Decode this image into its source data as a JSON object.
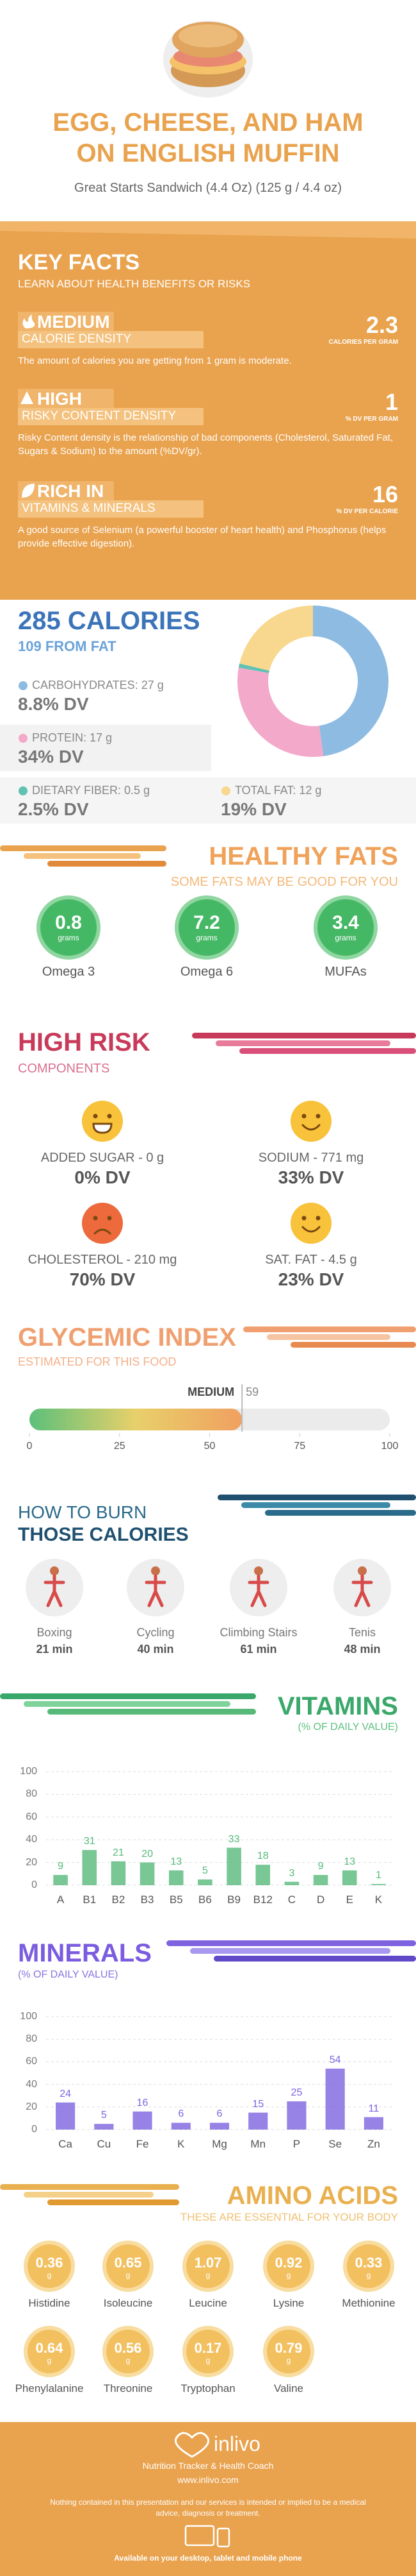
{
  "header": {
    "title_line1": "EGG, CHEESE, AND HAM",
    "title_line2": "ON ENGLISH MUFFIN",
    "subtitle": "Great Starts Sandwich (4.4 Oz) (125 g / 4.4 oz)"
  },
  "key_facts": {
    "title": "KEY FACTS",
    "subtitle": "LEARN ABOUT HEALTH BENEFITS OR RISKS",
    "items": [
      {
        "level": "MEDIUM",
        "name": "CALORIE DENSITY",
        "value": 2.3,
        "unit": "CALORIES PER GRAM",
        "text": "The amount of calories you are getting from 1 gram is moderate."
      },
      {
        "level": "HIGH",
        "name": "RISKY CONTENT DENSITY",
        "value": 1,
        "unit": "% DV PER GRAM",
        "text": "Risky Content density is the relationship of bad components (Cholesterol, Saturated Fat, Sugars & Sodium) to the amount (%DV/gr)."
      },
      {
        "level": "RICH IN",
        "name": "VITAMINS & MINERALS",
        "value": 16,
        "unit": "% DV PER CALORIE",
        "text": "A good source of Selenium (a powerful booster of heart health) and Phosphorus (helps provide effective digestion)."
      }
    ]
  },
  "calories": {
    "title": "285 CALORIES",
    "from_fat": "109 FROM FAT"
  },
  "chart_data": [
    {
      "type": "pie",
      "donut": true,
      "labels": [
        "CARBOHYDRATES: 27 g",
        "PROTEIN: 17 g",
        "DIETARY FIBER: 0.5 g",
        "TOTAL FAT: 12 g"
      ],
      "values": [
        27,
        17,
        0.5,
        12
      ],
      "dv": [
        "8.8% DV",
        "34% DV",
        "2.5% DV",
        "19% DV"
      ],
      "colors": [
        "#8dbbe2",
        "#f3a9c9",
        "#5fc2b2",
        "#f8d78e"
      ]
    },
    {
      "type": "gauge",
      "title": "GLYCEMIC INDEX",
      "subtitle": "ESTIMATED FOR THIS FOOD",
      "level": "MEDIUM",
      "value": 59,
      "xlim": [
        0,
        100
      ],
      "xticks": [
        0,
        25,
        50,
        75,
        100
      ]
    },
    {
      "type": "bar",
      "title": "VITAMINS",
      "subtitle": "(% OF DAILY VALUE)",
      "categories": [
        "A",
        "B1",
        "B2",
        "B3",
        "B5",
        "B6",
        "B9",
        "B12",
        "C",
        "D",
        "E",
        "K"
      ],
      "values": [
        9,
        31,
        21,
        20,
        13,
        5,
        33,
        18,
        3,
        9,
        13,
        1
      ],
      "color": "#56b97a",
      "ylim": [
        0,
        100
      ],
      "yticks": [
        0,
        20,
        40,
        60,
        80,
        100
      ],
      "grid": true
    },
    {
      "type": "bar",
      "title": "MINERALS",
      "subtitle": "(% OF DAILY VALUE)",
      "categories": [
        "Ca",
        "Cu",
        "Fe",
        "K",
        "Mg",
        "Mn",
        "P",
        "Se",
        "Zn"
      ],
      "values": [
        24,
        5,
        16,
        6,
        6,
        15,
        25,
        54,
        11
      ],
      "color": "#7d63e0",
      "ylim": [
        0,
        100
      ],
      "yticks": [
        0,
        20,
        40,
        60,
        80,
        100
      ],
      "grid": true
    }
  ],
  "healthy_fats": {
    "title": "HEALTHY FATS",
    "subtitle": "SOME FATS MAY BE GOOD FOR YOU",
    "unit": "grams",
    "items": [
      {
        "name": "Omega 3",
        "value": 0.8
      },
      {
        "name": "Omega 6",
        "value": 7.2
      },
      {
        "name": "MUFAs",
        "value": 3.4
      }
    ]
  },
  "high_risk": {
    "title": "HIGH RISK",
    "subtitle": "COMPONENTS",
    "items": [
      {
        "label": "ADDED SUGAR - 0 g",
        "dv": "0% DV"
      },
      {
        "label": "SODIUM - 771 mg",
        "dv": "33% DV"
      },
      {
        "label": "CHOLESTEROL - 210 mg",
        "dv": "70% DV"
      },
      {
        "label": "SAT. FAT - 4.5 g",
        "dv": "23% DV"
      }
    ]
  },
  "burn": {
    "title_line1": "HOW TO BURN",
    "title_line2": "THOSE CALORIES",
    "items": [
      {
        "name": "Boxing",
        "time": "21 min"
      },
      {
        "name": "Cycling",
        "time": "40 min"
      },
      {
        "name": "Climbing Stairs",
        "time": "61 min"
      },
      {
        "name": "Tenis",
        "time": "48 min"
      }
    ]
  },
  "amino_acids": {
    "title": "AMINO ACIDS",
    "subtitle": "THESE ARE ESSENTIAL FOR YOUR BODY",
    "unit": "g",
    "items": [
      {
        "name": "Histidine",
        "value": 0.36
      },
      {
        "name": "Isoleucine",
        "value": 0.65
      },
      {
        "name": "Leucine",
        "value": 1.07
      },
      {
        "name": "Lysine",
        "value": 0.92
      },
      {
        "name": "Methionine",
        "value": 0.33
      },
      {
        "name": "Phenylalanine",
        "value": 0.64
      },
      {
        "name": "Threonine",
        "value": 0.56
      },
      {
        "name": "Tryptophan",
        "value": 0.17
      },
      {
        "name": "Valine",
        "value": 0.79
      }
    ]
  },
  "footer": {
    "brand": "inlivo",
    "tagline": "Nutrition Tracker & Health Coach",
    "url": "www.inlivo.com",
    "disclaimer": "Nothing contained in this presentation and our services is intended or implied to be a medical advice, diagnosis or treatment.",
    "available": "Available on your desktop, tablet and mobile phone"
  }
}
